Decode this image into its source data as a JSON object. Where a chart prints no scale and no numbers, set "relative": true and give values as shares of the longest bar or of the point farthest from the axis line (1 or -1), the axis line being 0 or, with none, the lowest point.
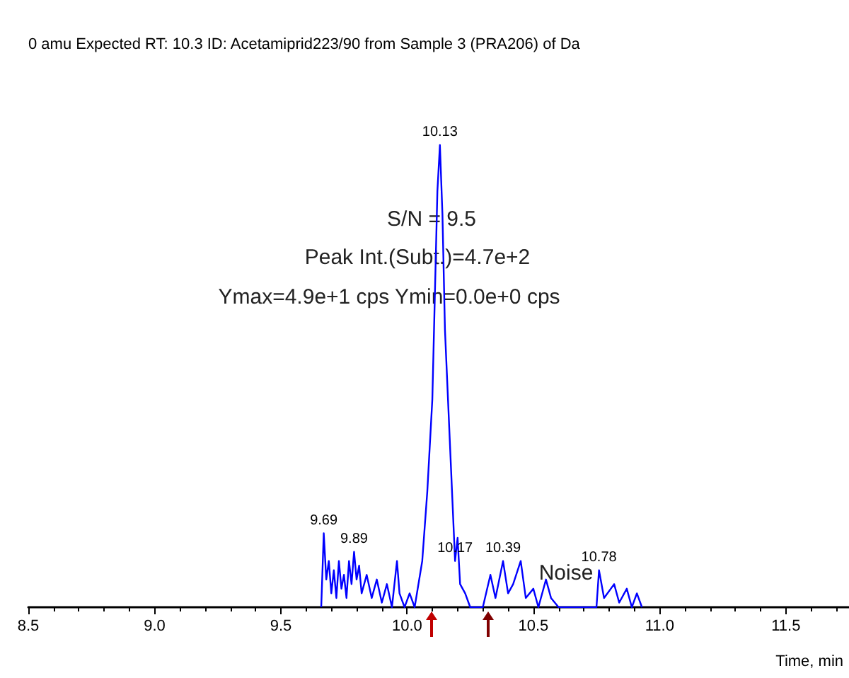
{
  "chart_data": {
    "type": "line",
    "relative": true,
    "title": "0 amu Expected RT: 10.3 ID: Acetamiprid223/90 from Sample 3 (PRA206) of Da",
    "xlabel": "Time, min",
    "xlim": [
      8.5,
      11.75
    ],
    "xticks": [
      8.5,
      {
        "value": 9,
        "label": "9.0"
      },
      9.5,
      {
        "value": 10,
        "label": "10.0"
      },
      10.5,
      {
        "value": 11,
        "label": "11.0"
      },
      11.5
    ],
    "grid": false,
    "line_style": "solid",
    "x": [
      9.66,
      9.67,
      9.68,
      9.69,
      9.7,
      9.71,
      9.72,
      9.73,
      9.74,
      9.75,
      9.76,
      9.77,
      9.78,
      9.79,
      9.8,
      9.81,
      9.82,
      9.84,
      9.86,
      9.88,
      9.9,
      9.92,
      9.94,
      9.96,
      9.97,
      9.99,
      10.01,
      10.03,
      10.06,
      10.08,
      10.1,
      10.12,
      10.13,
      10.14,
      10.15,
      10.17,
      10.19,
      10.2,
      10.21,
      10.23,
      10.25,
      10.3,
      10.33,
      10.35,
      10.38,
      10.4,
      10.42,
      10.45,
      10.47,
      10.5,
      10.52,
      10.55,
      10.57,
      10.6,
      10.75,
      10.76,
      10.78,
      10.82,
      10.84,
      10.87,
      10.89,
      10.91,
      10.93
    ],
    "series": [
      {
        "color": "#0000ff",
        "values": [
          0,
          0.16,
          0.06,
          0.1,
          0.03,
          0.08,
          0.02,
          0.1,
          0.04,
          0.07,
          0.02,
          0.1,
          0.05,
          0.12,
          0.06,
          0.09,
          0.03,
          0.07,
          0.02,
          0.06,
          0.01,
          0.05,
          0,
          0.1,
          0.03,
          0,
          0.03,
          0,
          0.1,
          0.25,
          0.45,
          0.9,
          1.0,
          0.85,
          0.6,
          0.35,
          0.1,
          0.15,
          0.05,
          0.03,
          0,
          0,
          0.07,
          0.02,
          0.1,
          0.03,
          0.05,
          0.1,
          0.02,
          0.04,
          0,
          0.06,
          0.02,
          0,
          0,
          0.08,
          0.02,
          0.05,
          0.01,
          0.04,
          0,
          0.03,
          0
        ]
      }
    ],
    "annotations": [
      {
        "text": "10.13",
        "x": 10.13,
        "y": 1.0
      },
      {
        "text": "9.69",
        "x": 9.67,
        "y": 0.16
      },
      {
        "text": "9.89",
        "x": 9.79,
        "y": 0.12
      },
      {
        "text": "10.17",
        "x": 10.19,
        "y": 0.1
      },
      {
        "text": "10.39",
        "x": 10.38,
        "y": 0.1
      },
      {
        "text": "10.78",
        "x": 10.76,
        "y": 0.08
      },
      "S/N = 9.5",
      "Peak Int.(Subt.)=4.7e+2",
      "Ymax=4.9e+1 cps Ymin=0.0e+0 cps",
      "Noise"
    ]
  }
}
